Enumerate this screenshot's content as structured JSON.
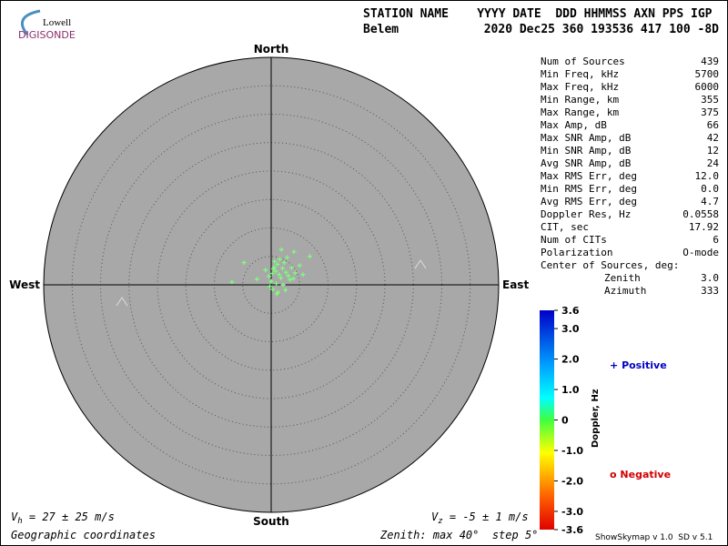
{
  "logo": {
    "top": "Lowell",
    "bottom": "DIGISONDE"
  },
  "header": {
    "columns": "STATION NAME    YYYY DATE  DDD HHMMSS AXN PPS IGP",
    "station": "Belem",
    "values": "2020 Dec25 360 193536 417 100 -8D"
  },
  "stats": [
    [
      "Num of Sources",
      "439"
    ],
    [
      "Min Freq, kHz",
      "5700"
    ],
    [
      "Max Freq, kHz",
      "6000"
    ],
    [
      "Min Range, km",
      "355"
    ],
    [
      "Max Range, km",
      "375"
    ],
    [
      "Max Amp, dB",
      "66"
    ],
    [
      "Max SNR Amp, dB",
      "42"
    ],
    [
      "Min SNR Amp, dB",
      "12"
    ],
    [
      "Avg SNR Amp, dB",
      "24"
    ],
    [
      "Max RMS Err, deg",
      "12.0"
    ],
    [
      "Min RMS Err, deg",
      "0.0"
    ],
    [
      "Avg RMS Err, deg",
      "4.7"
    ],
    [
      "Doppler Res, Hz",
      "0.0558"
    ],
    [
      "CIT, sec",
      "17.92"
    ],
    [
      "Num of CITs",
      "6"
    ],
    [
      "Polarization",
      "O-mode"
    ]
  ],
  "center_title": "Center of Sources, deg:",
  "center": [
    [
      "Zenith",
      "3.0"
    ],
    [
      "Azimuth",
      "333"
    ]
  ],
  "chart_data": {
    "type": "polar-scatter",
    "directions": {
      "north": "North",
      "south": "South",
      "east": "East",
      "west": "West"
    },
    "rlim": [
      0,
      40
    ],
    "rticks": [
      5,
      10,
      15,
      20,
      25,
      30,
      35,
      40
    ],
    "background": "#a8a8a8",
    "color": "#7dff7d",
    "x": [
      0.2,
      0.8,
      1.4,
      2.0,
      2.6,
      -0.4,
      0.5,
      1.1,
      1.7,
      2.3,
      3.0,
      -1.0,
      0.0,
      0.9,
      1.5,
      2.8,
      3.6,
      4.2,
      5.0,
      6.8,
      -2.5,
      -4.8,
      -6.9,
      0.3,
      1.2,
      2.1,
      3.3,
      4.0,
      0.6,
      1.8,
      -0.2,
      2.5,
      3.9,
      5.6,
      1.0,
      0.4
    ],
    "y": [
      2.0,
      2.4,
      1.8,
      2.9,
      2.2,
      1.5,
      3.1,
      3.6,
      1.2,
      3.9,
      1.6,
      2.6,
      0.6,
      0.2,
      4.5,
      4.8,
      3.0,
      2.1,
      3.4,
      5.0,
      1.0,
      3.9,
      0.5,
      -0.8,
      -1.3,
      0.0,
      0.9,
      5.8,
      4.1,
      6.2,
      -0.3,
      -0.9,
      1.1,
      1.8,
      -1.6,
      2.8
    ]
  },
  "colorbar": {
    "title": "Doppler, Hz",
    "lim": [
      -3.6,
      3.6
    ],
    "ticks": [
      3.6,
      {
        "value": 3,
        "label": "3.0"
      },
      {
        "value": 2,
        "label": "2.0"
      },
      {
        "value": 1,
        "label": "1.0"
      },
      0,
      {
        "value": -1,
        "label": "-1.0"
      },
      {
        "value": -2,
        "label": "-2.0"
      },
      {
        "value": -3,
        "label": "-3.0"
      },
      -3.6
    ]
  },
  "legend": {
    "positive_symbol": "+",
    "positive": "Positive",
    "negative_symbol": "o",
    "negative": "Negative"
  },
  "footer": {
    "vh_symbol": "V",
    "vh_sub": "h",
    "vh_text": " = 27 ± 25 m/s",
    "vz_symbol": "V",
    "vz_sub": "z",
    "vz_text": " = -5 ± 1 m/s",
    "coords": "Geographic coordinates",
    "zenith": "Zenith: max 40°  step 5°",
    "version": "ShowSkymap v 1.0  SD v 5.1"
  }
}
